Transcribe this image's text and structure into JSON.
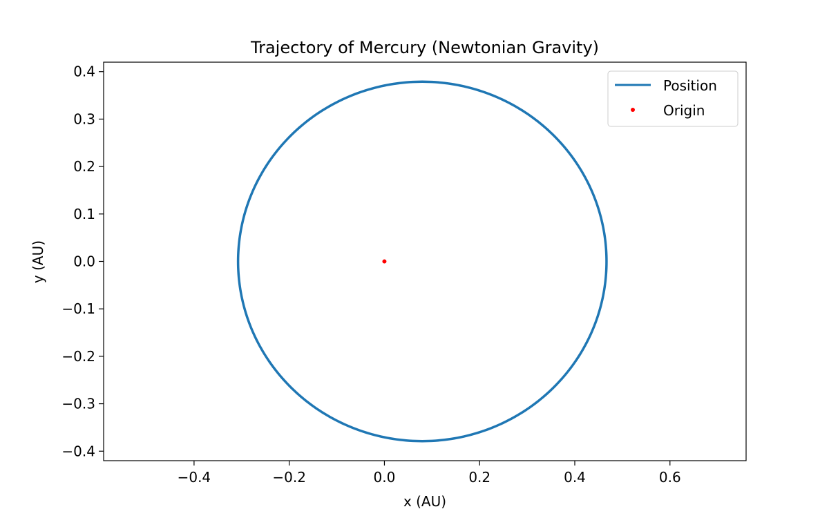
{
  "chart_data": {
    "type": "line",
    "title": "Trajectory of Mercury (Newtonian Gravity)",
    "xlabel": "x (AU)",
    "ylabel": "y (AU)",
    "xlim": [
      -0.59,
      0.76
    ],
    "ylim": [
      -0.42,
      0.42
    ],
    "xticks": [
      -0.4,
      -0.2,
      0.0,
      0.2,
      0.4,
      0.6
    ],
    "yticks": [
      -0.4,
      -0.3,
      -0.2,
      -0.1,
      0.0,
      0.1,
      0.2,
      0.3,
      0.4
    ],
    "xtick_labels": [
      "−0.4",
      "−0.2",
      "0.0",
      "0.2",
      "0.4",
      "0.6"
    ],
    "ytick_labels": [
      "−0.4",
      "−0.3",
      "−0.2",
      "−0.1",
      "0.0",
      "0.1",
      "0.2",
      "0.3",
      "0.4"
    ],
    "grid": false,
    "legend_position": "top-right",
    "series": [
      {
        "name": "Position",
        "kind": "ellipse",
        "center": [
          0.0796,
          0.0
        ],
        "semi_major": 0.3871,
        "semi_minor": 0.3788,
        "color": "#1f77b4"
      },
      {
        "name": "Origin",
        "kind": "point",
        "x": 0.0,
        "y": 0.0,
        "color": "#ff0000"
      }
    ]
  }
}
